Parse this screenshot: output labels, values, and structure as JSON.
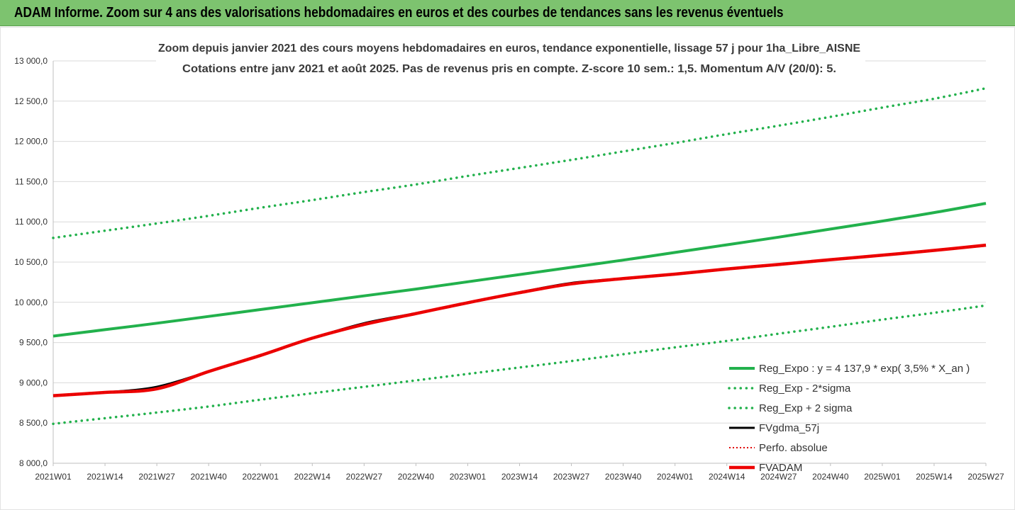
{
  "header": {
    "title": "ADAM Informe. Zoom sur 4 ans des valorisations hebdomadaires en euros et des courbes de tendances sans les revenus éventuels"
  },
  "colors": {
    "header_bg": "#7dc36f",
    "trend": "#22b14c",
    "band": "#22b14c",
    "fvgdma": "#000000",
    "perfo": "#e00000",
    "fvadam": "#ee0000",
    "grid": "#d9d9d9"
  },
  "chart_data": {
    "type": "line",
    "title": "Zoom depuis janvier 2021 des cours moyens hebdomadaires en euros, tendance exponentielle, lissage 57 j pour 1ha_Libre_AISNE",
    "subtitle": "Cotations entre janv 2021 et août 2025.  Pas de revenus pris en compte. Z-score 10 sem.: 1,5. Momentum A/V (20/0): 5.",
    "ylim": [
      8000,
      13000
    ],
    "grid": "horizontal",
    "legend_position": "right",
    "yticks": [
      "8 000,0",
      "8 500,0",
      "9 000,0",
      "9 500,0",
      "10 000,0",
      "10 500,0",
      "11 000,0",
      "11 500,0",
      "12 000,0",
      "12 500,0",
      "13 000,0"
    ],
    "x_categories": [
      "2021W01",
      "2021W14",
      "2021W27",
      "2021W40",
      "2022W01",
      "2022W14",
      "2022W27",
      "2022W40",
      "2023W01",
      "2023W14",
      "2023W27",
      "2023W40",
      "2024W01",
      "2024W14",
      "2024W27",
      "2024W40",
      "2025W01",
      "2025W14",
      "2025W27"
    ],
    "series": [
      {
        "name": "Reg_Expo : y = 4 137,9 * exp( 3,5% *  X_an )",
        "style": "solid-thick",
        "values": [
          9580,
          9660,
          9740,
          9825,
          9910,
          9995,
          10080,
          10165,
          10255,
          10345,
          10435,
          10525,
          10620,
          10715,
          10810,
          10910,
          11010,
          11115,
          11230
        ]
      },
      {
        "name": "Reg_Exp - 2*sigma",
        "style": "dotted",
        "values": [
          8490,
          8560,
          8630,
          8705,
          8790,
          8870,
          8950,
          9030,
          9110,
          9190,
          9270,
          9355,
          9440,
          9520,
          9610,
          9695,
          9785,
          9870,
          9960
        ]
      },
      {
        "name": "Reg_Exp + 2 sigma",
        "style": "dotted",
        "values": [
          10800,
          10890,
          10980,
          11075,
          11175,
          11270,
          11370,
          11465,
          11570,
          11670,
          11770,
          11875,
          11980,
          12090,
          12195,
          12305,
          12420,
          12530,
          12660
        ]
      },
      {
        "name": "FVgdma_57j",
        "style": "solid",
        "values": [
          8840,
          8880,
          8950,
          9140,
          9340,
          9555,
          9740,
          9865,
          9995,
          10125,
          10240,
          10295,
          10350,
          10415,
          10470,
          10530,
          10585,
          10645,
          10705
        ]
      },
      {
        "name": "Perfo. absolue",
        "style": "dotted-red",
        "values": [
          8840,
          8880,
          8930,
          9140,
          9340,
          9555,
          9730,
          9865,
          9995,
          10125,
          10235,
          10295,
          10350,
          10415,
          10470,
          10530,
          10585,
          10645,
          10705
        ]
      },
      {
        "name": "FVADAM",
        "style": "solid-thick",
        "values": [
          8840,
          8880,
          8925,
          9140,
          9340,
          9555,
          9725,
          9860,
          9995,
          10120,
          10230,
          10295,
          10350,
          10415,
          10470,
          10530,
          10585,
          10645,
          10710
        ]
      }
    ]
  }
}
